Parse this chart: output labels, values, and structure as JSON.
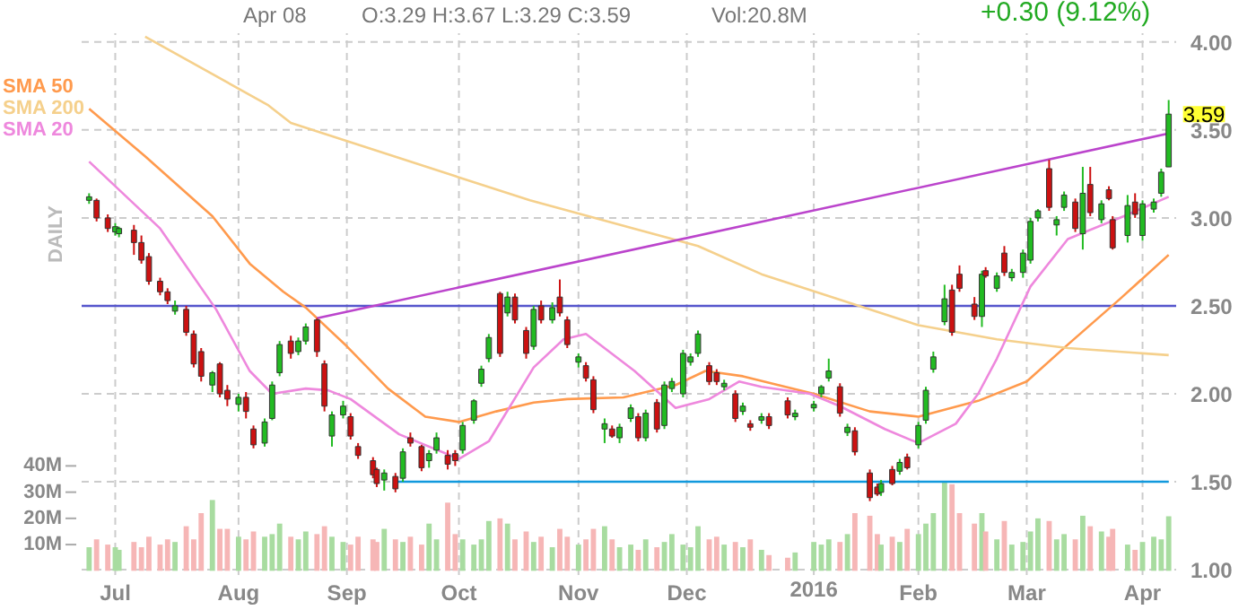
{
  "chart_data": {
    "type": "candlestick",
    "x": [
      "2015-06-24",
      "2015-06-26",
      "2015-06-29",
      "2015-07-01",
      "2015-07-02",
      "2015-07-06",
      "2015-07-08",
      "2015-07-10",
      "2015-07-13",
      "2015-07-15",
      "2015-07-17",
      "2015-07-20",
      "2015-07-22",
      "2015-07-24",
      "2015-07-27",
      "2015-07-29",
      "2015-07-31",
      "2015-08-03",
      "2015-08-05",
      "2015-08-07",
      "2015-08-10",
      "2015-08-12",
      "2015-08-14",
      "2015-08-17",
      "2015-08-19",
      "2015-08-21",
      "2015-08-24",
      "2015-08-26",
      "2015-08-28",
      "2015-08-31",
      "2015-09-02",
      "2015-09-04",
      "2015-09-08",
      "2015-09-09",
      "2015-09-11",
      "2015-09-14",
      "2015-09-16",
      "2015-09-18",
      "2015-09-21",
      "2015-09-23",
      "2015-09-25",
      "2015-09-28",
      "2015-09-30",
      "2015-10-02",
      "2015-10-05",
      "2015-10-07",
      "2015-10-09",
      "2015-10-12",
      "2015-10-14",
      "2015-10-16",
      "2015-10-19",
      "2015-10-21",
      "2015-10-23",
      "2015-10-26",
      "2015-10-28",
      "2015-10-30",
      "2015-11-02",
      "2015-11-04",
      "2015-11-06",
      "2015-11-09",
      "2015-11-11",
      "2015-11-13",
      "2015-11-16",
      "2015-11-18",
      "2015-11-20",
      "2015-11-23",
      "2015-11-25",
      "2015-11-27",
      "2015-11-30",
      "2015-12-02",
      "2015-12-04",
      "2015-12-07",
      "2015-12-09",
      "2015-12-11",
      "2015-12-14",
      "2015-12-16",
      "2015-12-18",
      "2015-12-21",
      "2015-12-23",
      "2015-12-28",
      "2015-12-30",
      "2016-01-04",
      "2016-01-06",
      "2016-01-08",
      "2016-01-11",
      "2016-01-13",
      "2016-01-15",
      "2016-01-19",
      "2016-01-21",
      "2016-01-22",
      "2016-01-25",
      "2016-01-27",
      "2016-01-29",
      "2016-02-01",
      "2016-02-03",
      "2016-02-05",
      "2016-02-08",
      "2016-02-10",
      "2016-02-12",
      "2016-02-16",
      "2016-02-18",
      "2016-02-19",
      "2016-02-22",
      "2016-02-24",
      "2016-02-26",
      "2016-02-29",
      "2016-03-02",
      "2016-03-04",
      "2016-03-07",
      "2016-03-09",
      "2016-03-11",
      "2016-03-14",
      "2016-03-16",
      "2016-03-18",
      "2016-03-21",
      "2016-03-23",
      "2016-03-24",
      "2016-03-28",
      "2016-03-30",
      "2016-04-01",
      "2016-04-04",
      "2016-04-06",
      "2016-04-08"
    ],
    "ohlc": [
      [
        3.1,
        3.14,
        3.08,
        3.12
      ],
      [
        3.1,
        3.11,
        2.98,
        3.0
      ],
      [
        3.0,
        3.02,
        2.92,
        2.94
      ],
      [
        2.92,
        2.97,
        2.9,
        2.95
      ],
      [
        2.91,
        2.95,
        2.89,
        2.94
      ],
      [
        2.93,
        2.96,
        2.79,
        2.86
      ],
      [
        2.86,
        2.9,
        2.74,
        2.76
      ],
      [
        2.78,
        2.8,
        2.62,
        2.64
      ],
      [
        2.64,
        2.66,
        2.56,
        2.58
      ],
      [
        2.58,
        2.6,
        2.51,
        2.53
      ],
      [
        2.47,
        2.53,
        2.45,
        2.5
      ],
      [
        2.48,
        2.5,
        2.33,
        2.35
      ],
      [
        2.34,
        2.36,
        2.15,
        2.17
      ],
      [
        2.24,
        2.26,
        2.07,
        2.1
      ],
      [
        2.05,
        2.13,
        2.01,
        2.12
      ],
      [
        2.17,
        2.18,
        1.98,
        2.0
      ],
      [
        2.02,
        2.05,
        1.93,
        1.97
      ],
      [
        1.94,
        2.0,
        1.9,
        1.98
      ],
      [
        1.98,
        2.01,
        1.86,
        1.9
      ],
      [
        1.8,
        1.82,
        1.69,
        1.71
      ],
      [
        1.72,
        1.86,
        1.7,
        1.84
      ],
      [
        1.86,
        2.07,
        1.85,
        2.05
      ],
      [
        2.12,
        2.3,
        2.1,
        2.28
      ],
      [
        2.3,
        2.33,
        2.2,
        2.23
      ],
      [
        2.24,
        2.32,
        2.22,
        2.3
      ],
      [
        2.3,
        2.4,
        2.28,
        2.38
      ],
      [
        2.42,
        2.43,
        2.21,
        2.24
      ],
      [
        2.17,
        2.19,
        1.9,
        1.93
      ],
      [
        1.76,
        1.9,
        1.7,
        1.88
      ],
      [
        1.88,
        1.96,
        1.86,
        1.93
      ],
      [
        1.87,
        1.89,
        1.74,
        1.76
      ],
      [
        1.7,
        1.72,
        1.63,
        1.65
      ],
      [
        1.62,
        1.64,
        1.52,
        1.54
      ],
      [
        1.57,
        1.58,
        1.47,
        1.49
      ],
      [
        1.51,
        1.57,
        1.45,
        1.55
      ],
      [
        1.53,
        1.55,
        1.44,
        1.46
      ],
      [
        1.52,
        1.69,
        1.5,
        1.67
      ],
      [
        1.75,
        1.78,
        1.7,
        1.72
      ],
      [
        1.7,
        1.71,
        1.56,
        1.58
      ],
      [
        1.62,
        1.68,
        1.58,
        1.66
      ],
      [
        1.68,
        1.78,
        1.66,
        1.75
      ],
      [
        1.65,
        1.68,
        1.57,
        1.6
      ],
      [
        1.66,
        1.68,
        1.59,
        1.62
      ],
      [
        1.68,
        1.84,
        1.66,
        1.82
      ],
      [
        1.85,
        1.97,
        1.83,
        1.96
      ],
      [
        2.06,
        2.16,
        2.04,
        2.14
      ],
      [
        2.2,
        2.34,
        2.18,
        2.32
      ],
      [
        2.57,
        2.58,
        2.21,
        2.23
      ],
      [
        2.46,
        2.58,
        2.44,
        2.55
      ],
      [
        2.55,
        2.57,
        2.4,
        2.42
      ],
      [
        2.36,
        2.38,
        2.2,
        2.23
      ],
      [
        2.27,
        2.5,
        2.25,
        2.48
      ],
      [
        2.5,
        2.53,
        2.4,
        2.42
      ],
      [
        2.42,
        2.52,
        2.4,
        2.49
      ],
      [
        2.55,
        2.65,
        2.44,
        2.46
      ],
      [
        2.42,
        2.44,
        2.26,
        2.28
      ],
      [
        2.18,
        2.23,
        2.15,
        2.21
      ],
      [
        2.16,
        2.18,
        2.07,
        2.09
      ],
      [
        2.08,
        2.1,
        1.89,
        1.91
      ],
      [
        1.8,
        1.86,
        1.72,
        1.83
      ],
      [
        1.8,
        1.82,
        1.75,
        1.76
      ],
      [
        1.75,
        1.83,
        1.72,
        1.81
      ],
      [
        1.86,
        1.94,
        1.84,
        1.92
      ],
      [
        1.87,
        1.89,
        1.73,
        1.75
      ],
      [
        1.75,
        1.91,
        1.73,
        1.89
      ],
      [
        1.95,
        1.97,
        1.78,
        1.8
      ],
      [
        1.82,
        2.07,
        1.8,
        2.05
      ],
      [
        2.03,
        2.09,
        2.01,
        2.07
      ],
      [
        2.0,
        2.25,
        1.98,
        2.23
      ],
      [
        2.18,
        2.23,
        2.16,
        2.21
      ],
      [
        2.23,
        2.36,
        2.21,
        2.34
      ],
      [
        2.16,
        2.18,
        2.05,
        2.07
      ],
      [
        2.12,
        2.14,
        2.05,
        2.07
      ],
      [
        2.04,
        2.08,
        2.02,
        2.06
      ],
      [
        2.0,
        2.02,
        1.84,
        1.86
      ],
      [
        1.9,
        1.95,
        1.88,
        1.93
      ],
      [
        1.83,
        1.85,
        1.79,
        1.81
      ],
      [
        1.85,
        1.89,
        1.83,
        1.87
      ],
      [
        1.87,
        1.89,
        1.8,
        1.82
      ],
      [
        1.96,
        1.98,
        1.86,
        1.88
      ],
      [
        1.87,
        1.91,
        1.85,
        1.89
      ],
      [
        1.92,
        1.96,
        1.9,
        1.94
      ],
      [
        2.0,
        2.05,
        1.98,
        2.04
      ],
      [
        2.09,
        2.2,
        2.07,
        2.13
      ],
      [
        2.04,
        2.06,
        1.87,
        1.89
      ],
      [
        1.78,
        1.83,
        1.76,
        1.81
      ],
      [
        1.79,
        1.81,
        1.65,
        1.67
      ],
      [
        1.55,
        1.57,
        1.39,
        1.41
      ],
      [
        1.47,
        1.49,
        1.42,
        1.43
      ],
      [
        1.44,
        1.51,
        1.42,
        1.49
      ],
      [
        1.57,
        1.59,
        1.48,
        1.49
      ],
      [
        1.56,
        1.63,
        1.54,
        1.61
      ],
      [
        1.64,
        1.66,
        1.57,
        1.58
      ],
      [
        1.71,
        1.84,
        1.69,
        1.82
      ],
      [
        1.85,
        2.04,
        1.83,
        2.02
      ],
      [
        2.14,
        2.24,
        2.12,
        2.21
      ],
      [
        2.41,
        2.62,
        2.39,
        2.54
      ],
      [
        2.59,
        2.62,
        2.33,
        2.35
      ],
      [
        2.68,
        2.73,
        2.58,
        2.6
      ],
      [
        2.51,
        2.55,
        2.42,
        2.44
      ],
      [
        2.44,
        2.7,
        2.38,
        2.68
      ],
      [
        2.7,
        2.72,
        2.66,
        2.67
      ],
      [
        2.6,
        2.69,
        2.58,
        2.67
      ],
      [
        2.8,
        2.84,
        2.67,
        2.69
      ],
      [
        2.66,
        2.71,
        2.64,
        2.69
      ],
      [
        2.69,
        2.82,
        2.66,
        2.8
      ],
      [
        2.76,
        3.0,
        2.74,
        2.98
      ],
      [
        3.0,
        3.05,
        2.98,
        3.04
      ],
      [
        3.28,
        3.33,
        3.04,
        3.06
      ],
      [
        2.96,
        3.01,
        2.9,
        2.99
      ],
      [
        3.06,
        3.15,
        3.04,
        3.13
      ],
      [
        3.09,
        3.11,
        2.92,
        2.94
      ],
      [
        2.91,
        3.29,
        2.82,
        3.14
      ],
      [
        3.19,
        3.29,
        3.01,
        3.03
      ],
      [
        2.99,
        3.1,
        2.97,
        3.08
      ],
      [
        3.16,
        3.18,
        3.1,
        3.11
      ],
      [
        2.99,
        3.01,
        2.82,
        2.83
      ],
      [
        2.9,
        3.13,
        2.86,
        3.07
      ],
      [
        3.09,
        3.14,
        3.0,
        3.02
      ],
      [
        2.9,
        3.1,
        2.87,
        3.08
      ],
      [
        3.05,
        3.11,
        3.03,
        3.09
      ],
      [
        3.14,
        3.28,
        3.12,
        3.26
      ],
      [
        3.29,
        3.67,
        3.29,
        3.59
      ]
    ],
    "colors": [
      "#22bb22",
      "#cc1111",
      "#cc1111",
      "#22bb22",
      "#22bb22",
      "#cc1111",
      "#cc1111",
      "#cc1111",
      "#cc1111",
      "#cc1111",
      "#22bb22",
      "#cc1111",
      "#cc1111",
      "#cc1111",
      "#22bb22",
      "#cc1111",
      "#cc1111",
      "#22bb22",
      "#cc1111",
      "#cc1111",
      "#22bb22",
      "#22bb22",
      "#22bb22",
      "#cc1111",
      "#22bb22",
      "#22bb22",
      "#cc1111",
      "#cc1111",
      "#22bb22",
      "#22bb22",
      "#cc1111",
      "#cc1111",
      "#cc1111",
      "#cc1111",
      "#22bb22",
      "#cc1111",
      "#22bb22",
      "#cc1111",
      "#cc1111",
      "#22bb22",
      "#22bb22",
      "#cc1111",
      "#cc1111",
      "#22bb22",
      "#22bb22",
      "#22bb22",
      "#22bb22",
      "#cc1111",
      "#22bb22",
      "#cc1111",
      "#cc1111",
      "#22bb22",
      "#cc1111",
      "#22bb22",
      "#cc1111",
      "#cc1111",
      "#22bb22",
      "#cc1111",
      "#cc1111",
      "#22bb22",
      "#cc1111",
      "#22bb22",
      "#22bb22",
      "#cc1111",
      "#22bb22",
      "#cc1111",
      "#22bb22",
      "#22bb22",
      "#22bb22",
      "#22bb22",
      "#22bb22",
      "#cc1111",
      "#cc1111",
      "#22bb22",
      "#cc1111",
      "#22bb22",
      "#cc1111",
      "#22bb22",
      "#cc1111",
      "#cc1111",
      "#22bb22",
      "#22bb22",
      "#22bb22",
      "#22bb22",
      "#cc1111",
      "#22bb22",
      "#cc1111",
      "#cc1111",
      "#cc1111",
      "#22bb22",
      "#cc1111",
      "#22bb22",
      "#cc1111",
      "#22bb22",
      "#22bb22",
      "#22bb22",
      "#22bb22",
      "#cc1111",
      "#cc1111",
      "#cc1111",
      "#22bb22",
      "#cc1111",
      "#22bb22",
      "#cc1111",
      "#22bb22",
      "#22bb22",
      "#22bb22",
      "#22bb22",
      "#cc1111",
      "#22bb22",
      "#22bb22",
      "#cc1111",
      "#22bb22",
      "#cc1111",
      "#22bb22",
      "#cc1111",
      "#cc1111",
      "#22bb22",
      "#cc1111",
      "#22bb22",
      "#22bb22",
      "#22bb22",
      "#22bb22"
    ],
    "series": [
      {
        "type": "bar",
        "axis": "y2",
        "values": [
          9,
          12,
          10,
          9,
          8,
          11,
          9,
          13,
          10,
          12,
          11,
          17,
          12,
          22,
          27,
          16,
          16,
          13,
          12,
          15,
          13,
          14,
          18,
          13,
          12,
          15,
          14,
          17,
          13,
          11,
          10,
          13,
          12,
          11,
          16,
          12,
          11,
          13,
          10,
          18,
          12,
          26,
          14,
          12,
          10,
          12,
          19,
          20,
          18,
          12,
          15,
          11,
          13,
          9,
          16,
          13,
          10,
          12,
          16,
          17,
          12,
          9,
          10,
          8,
          12,
          9,
          11,
          14,
          10,
          9,
          17,
          12,
          13,
          10,
          11,
          9,
          12,
          8,
          6,
          5,
          7,
          11,
          10,
          12,
          11,
          14,
          22,
          21,
          14,
          10,
          13,
          11,
          16,
          14,
          18,
          22,
          34,
          33,
          22,
          18,
          22,
          15,
          12,
          19,
          10,
          11,
          15,
          20,
          19,
          12,
          14,
          12,
          21,
          17,
          15,
          13,
          16,
          10,
          8,
          11,
          13,
          12,
          20.8
        ],
        "colors": [
          "#a8dca0",
          "#f6b6b6",
          "#f6b6b6",
          "#a8dca0",
          "#a8dca0",
          "#f6b6b6",
          "#f6b6b6",
          "#f6b6b6",
          "#f6b6b6",
          "#f6b6b6",
          "#a8dca0",
          "#f6b6b6",
          "#f6b6b6",
          "#f6b6b6",
          "#a8dca0",
          "#f6b6b6",
          "#f6b6b6",
          "#a8dca0",
          "#f6b6b6",
          "#f6b6b6",
          "#a8dca0",
          "#a8dca0",
          "#a8dca0",
          "#f6b6b6",
          "#a8dca0",
          "#a8dca0",
          "#f6b6b6",
          "#f6b6b6",
          "#a8dca0",
          "#a8dca0",
          "#f6b6b6",
          "#f6b6b6",
          "#f6b6b6",
          "#f6b6b6",
          "#a8dca0",
          "#f6b6b6",
          "#a8dca0",
          "#f6b6b6",
          "#f6b6b6",
          "#a8dca0",
          "#a8dca0",
          "#f6b6b6",
          "#f6b6b6",
          "#a8dca0",
          "#a8dca0",
          "#a8dca0",
          "#a8dca0",
          "#f6b6b6",
          "#a8dca0",
          "#f6b6b6",
          "#f6b6b6",
          "#a8dca0",
          "#f6b6b6",
          "#a8dca0",
          "#f6b6b6",
          "#f6b6b6",
          "#a8dca0",
          "#f6b6b6",
          "#f6b6b6",
          "#a8dca0",
          "#f6b6b6",
          "#a8dca0",
          "#a8dca0",
          "#f6b6b6",
          "#a8dca0",
          "#f6b6b6",
          "#a8dca0",
          "#a8dca0",
          "#a8dca0",
          "#a8dca0",
          "#a8dca0",
          "#f6b6b6",
          "#f6b6b6",
          "#a8dca0",
          "#f6b6b6",
          "#a8dca0",
          "#f6b6b6",
          "#a8dca0",
          "#f6b6b6",
          "#f6b6b6",
          "#a8dca0",
          "#a8dca0",
          "#a8dca0",
          "#a8dca0",
          "#f6b6b6",
          "#a8dca0",
          "#f6b6b6",
          "#f6b6b6",
          "#f6b6b6",
          "#a8dca0",
          "#f6b6b6",
          "#a8dca0",
          "#f6b6b6",
          "#a8dca0",
          "#a8dca0",
          "#a8dca0",
          "#a8dca0",
          "#f6b6b6",
          "#f6b6b6",
          "#f6b6b6",
          "#a8dca0",
          "#f6b6b6",
          "#a8dca0",
          "#f6b6b6",
          "#a8dca0",
          "#a8dca0",
          "#a8dca0",
          "#a8dca0",
          "#f6b6b6",
          "#a8dca0",
          "#a8dca0",
          "#f6b6b6",
          "#a8dca0",
          "#f6b6b6",
          "#a8dca0",
          "#f6b6b6",
          "#f6b6b6",
          "#a8dca0",
          "#f6b6b6",
          "#a8dca0",
          "#a8dca0",
          "#a8dca0",
          "#a8dca0"
        ]
      },
      {
        "type": "line",
        "name": "SMA 50",
        "color": "#ff9a4d",
        "x": [
          "2015-06-24",
          "2015-07-09",
          "2015-07-27",
          "2015-08-06",
          "2015-08-15",
          "2015-08-21",
          "2015-09-01",
          "2015-09-12",
          "2015-09-22",
          "2015-10-01",
          "2015-10-11",
          "2015-10-21",
          "2015-10-30",
          "2015-11-14",
          "2015-11-28",
          "2015-12-06",
          "2015-12-16",
          "2016-01-04",
          "2016-01-19",
          "2016-02-01",
          "2016-02-17",
          "2016-03-01",
          "2016-03-12",
          "2016-03-26",
          "2016-04-08"
        ],
        "values": [
          3.62,
          3.35,
          3.01,
          2.74,
          2.58,
          2.49,
          2.27,
          2.03,
          1.87,
          1.84,
          1.9,
          1.95,
          1.97,
          1.98,
          2.05,
          2.13,
          2.1,
          2.0,
          1.9,
          1.87,
          1.96,
          2.07,
          2.28,
          2.54,
          2.79
        ]
      },
      {
        "type": "line",
        "name": "SMA 200",
        "color": "#f5d08c",
        "x": [
          "2015-07-09",
          "2015-08-11",
          "2015-08-17",
          "2015-10-20",
          "2015-12-04",
          "2015-12-21",
          "2016-02-01",
          "2016-02-22",
          "2016-03-12",
          "2016-04-08"
        ],
        "values": [
          4.03,
          3.64,
          3.54,
          3.1,
          2.84,
          2.68,
          2.39,
          2.31,
          2.26,
          2.22
        ]
      },
      {
        "type": "line",
        "name": "SMA 20",
        "color": "#ee88dd",
        "x": [
          "2015-06-24",
          "2015-07-13",
          "2015-07-28",
          "2015-08-06",
          "2015-08-12",
          "2015-08-21",
          "2015-08-27",
          "2015-09-02",
          "2015-09-15",
          "2015-10-01",
          "2015-10-09",
          "2015-10-21",
          "2015-10-29",
          "2015-11-04",
          "2015-11-17",
          "2015-11-28",
          "2015-12-07",
          "2015-12-15",
          "2015-12-21",
          "2016-01-03",
          "2016-01-11",
          "2016-01-23",
          "2016-02-01",
          "2016-02-11",
          "2016-02-17",
          "2016-02-22",
          "2016-03-02",
          "2016-03-12",
          "2016-03-27",
          "2016-04-08"
        ],
        "values": [
          3.32,
          2.94,
          2.48,
          2.13,
          2.0,
          2.03,
          2.02,
          1.97,
          1.77,
          1.63,
          1.73,
          2.15,
          2.31,
          2.34,
          2.13,
          1.92,
          1.97,
          2.07,
          2.04,
          2.0,
          1.93,
          1.8,
          1.72,
          1.83,
          2.0,
          2.2,
          2.61,
          2.88,
          3.01,
          3.12
        ]
      },
      {
        "type": "line",
        "color": "#bb44cc",
        "x": [
          "2015-08-24",
          "2016-04-08"
        ],
        "values": [
          2.43,
          3.48
        ]
      },
      {
        "type": "line",
        "color": "#1199dd",
        "x": [
          "2015-09-14",
          "2016-04-08"
        ],
        "values": [
          1.5,
          1.5
        ]
      }
    ],
    "ref_lines": [
      {
        "axis": "y",
        "value": 2.5,
        "color": "#5555cc"
      }
    ],
    "xlim": [
      "2015-06-22",
      "2016-04-10"
    ],
    "xticks": [
      {
        "value": "2015-07-01",
        "label": "Jul"
      },
      {
        "value": "2015-08-03",
        "label": "Aug"
      },
      {
        "value": "2015-09-01",
        "label": "Sep"
      },
      {
        "value": "2015-10-01",
        "label": "Oct"
      },
      {
        "value": "2015-11-02",
        "label": "Nov"
      },
      {
        "value": "2015-12-01",
        "label": "Dec"
      },
      {
        "value": "2016-01-04",
        "label": "2016"
      },
      {
        "value": "2016-02-01",
        "label": "Feb"
      },
      {
        "value": "2016-03-01",
        "label": "Mar"
      },
      {
        "value": "2016-04-01",
        "label": "Apr"
      }
    ],
    "ylim": [
      0.97,
      4.05
    ],
    "yticks": [
      {
        "value": 1,
        "label": "1.00"
      },
      {
        "value": 1.5,
        "label": "1.50"
      },
      {
        "value": 2,
        "label": "2.00"
      },
      {
        "value": 2.5,
        "label": "2.50"
      },
      {
        "value": 3,
        "label": "3.00"
      },
      {
        "value": 3.5,
        "label": "3.50"
      },
      {
        "value": 4,
        "label": "4.00"
      }
    ],
    "y2lim": [
      -1.6,
      205
    ],
    "y2ticks": [
      {
        "value": 10,
        "label": "10M"
      },
      {
        "value": 20,
        "label": "20M"
      },
      {
        "value": 30,
        "label": "30M"
      },
      {
        "value": 40,
        "label": "40M"
      }
    ],
    "grid": true,
    "legend": "top left",
    "annotations": [
      "Apr 08",
      "O:3.29 H:3.67 L:3.29 C:3.59",
      "Vol:20.8M",
      "+0.30 (9.12%)",
      "DAILY",
      {
        "text": "3.59",
        "x": "2016-04-08",
        "y": 3.59
      }
    ]
  }
}
